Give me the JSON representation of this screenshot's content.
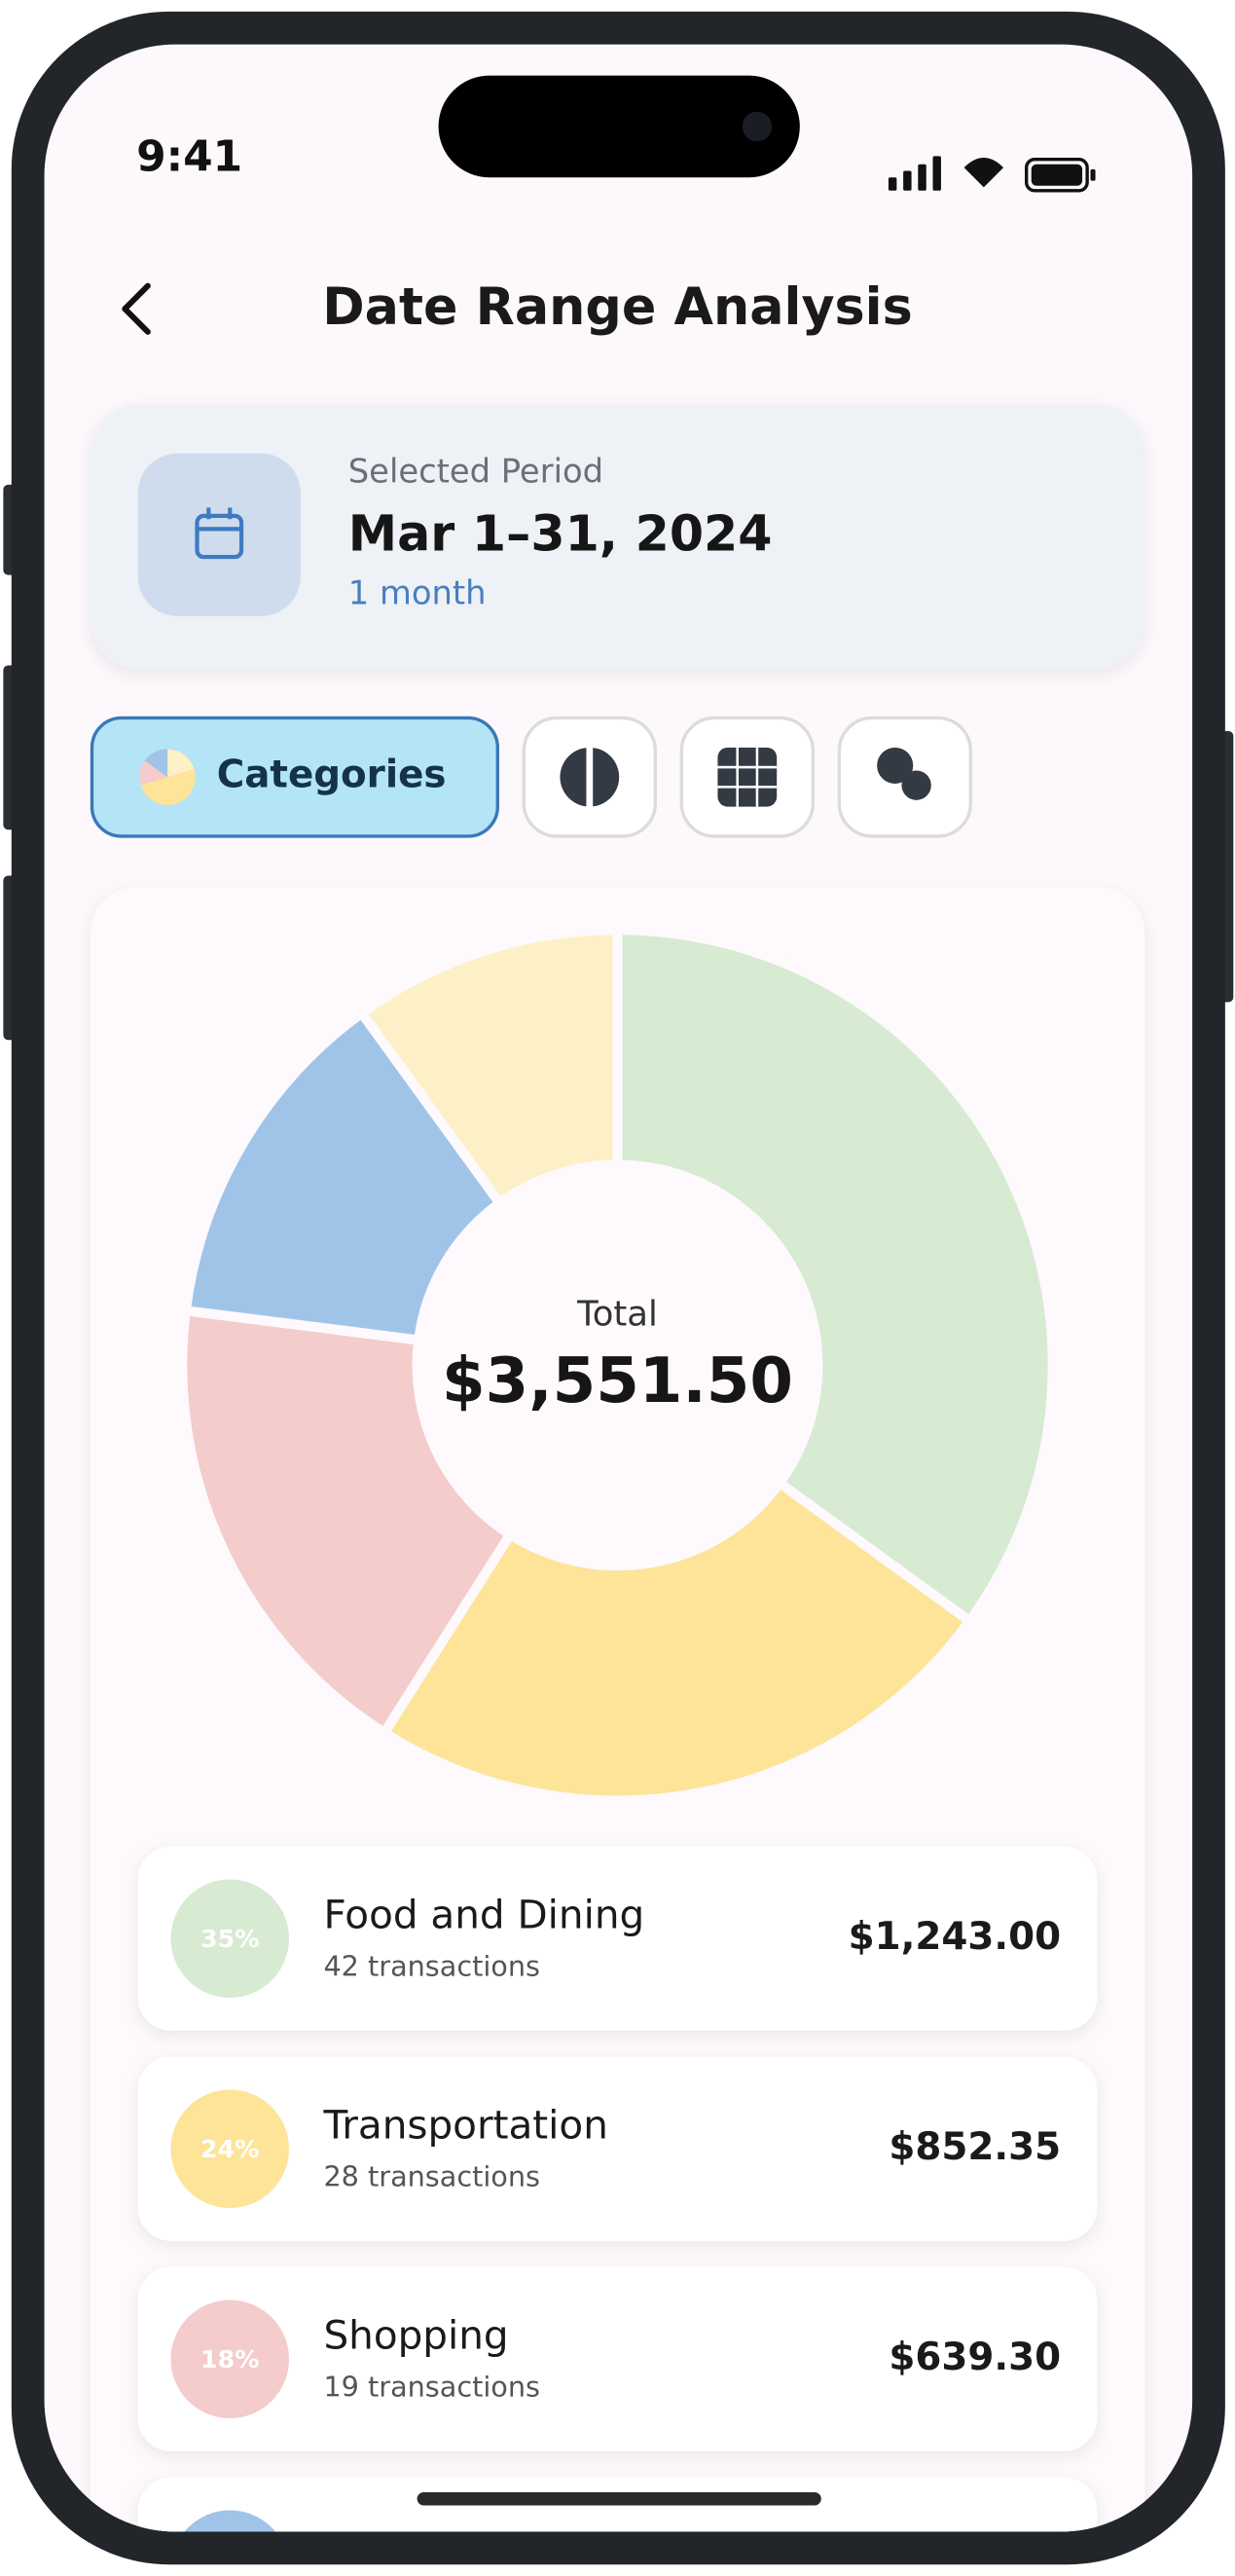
{
  "status_bar": {
    "time": "9:41"
  },
  "header": {
    "title": "Date Range Analysis"
  },
  "period": {
    "label": "Selected Period",
    "range": "Mar 1–31, 2024",
    "duration": "1 month"
  },
  "tabs": [
    {
      "label": "Categories"
    }
  ],
  "chart_data": {
    "type": "pie",
    "center_label": "Total",
    "center_value": "$3,551.50",
    "values": [
      35,
      24,
      18,
      13,
      10
    ],
    "colors": [
      "#d7ead2",
      "#fde499",
      "#f3cccb",
      "#a0c4e8",
      "#fdf0c7"
    ]
  },
  "items": [
    {
      "percent": "35%",
      "name": "Food and Dining",
      "transactions": "42 transactions",
      "amount": "$1,243.00"
    },
    {
      "percent": "24%",
      "name": "Transportation",
      "transactions": "28 transactions",
      "amount": "$852.35"
    },
    {
      "percent": "18%",
      "name": "Shopping",
      "transactions": "19 transactions",
      "amount": "$639.30"
    }
  ]
}
